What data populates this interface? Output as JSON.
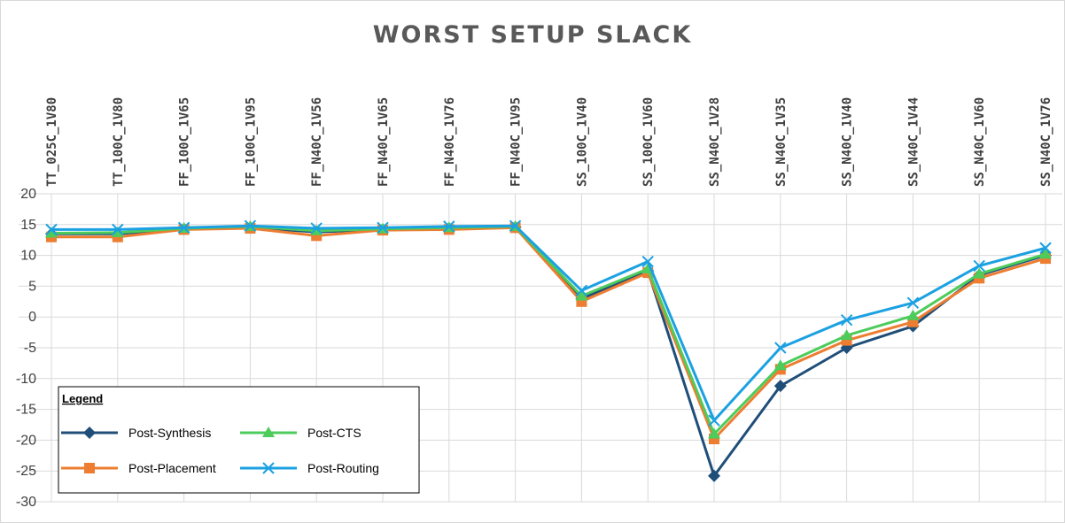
{
  "chart_data": {
    "type": "line",
    "title": "WORST SETUP SLACK",
    "categories": [
      "TT_025C_1V80",
      "TT_100C_1V80",
      "FF_100C_1V65",
      "FF_100C_1V95",
      "FF_N40C_1V56",
      "FF_N40C_1V65",
      "FF_N40C_1V76",
      "FF_N40C_1V95",
      "SS_100C_1V40",
      "SS_100C_1V60",
      "SS_N40C_1V28",
      "SS_N40C_1V35",
      "SS_N40C_1V40",
      "SS_N40C_1V44",
      "SS_N40C_1V60",
      "SS_N40C_1V76"
    ],
    "ylim": [
      -30,
      20
    ],
    "yticks": [
      20,
      15,
      10,
      5,
      0,
      -5,
      -10,
      -15,
      -20,
      -25,
      -30
    ],
    "grid": true,
    "legend_title": "Legend",
    "legend_placement": "bottom-left",
    "series": [
      {
        "name": "Post-Synthesis",
        "color": "#1f4e79",
        "marker": "diamond",
        "values": [
          13.5,
          13.5,
          14.3,
          14.5,
          13.8,
          14.2,
          14.4,
          14.6,
          3.0,
          7.5,
          -25.8,
          -11.2,
          -5.0,
          -1.5,
          6.8,
          10.0
        ]
      },
      {
        "name": "Post-Placement",
        "color": "#ed7d31",
        "marker": "square",
        "values": [
          13.0,
          13.0,
          14.2,
          14.4,
          13.2,
          14.1,
          14.2,
          14.5,
          2.5,
          7.2,
          -19.8,
          -8.5,
          -3.8,
          -0.8,
          6.3,
          9.5
        ]
      },
      {
        "name": "Post-CTS",
        "color": "#4dcc5b",
        "marker": "triangle",
        "values": [
          13.6,
          13.7,
          14.4,
          14.7,
          14.0,
          14.3,
          14.5,
          14.7,
          3.4,
          7.8,
          -19.0,
          -7.9,
          -3.0,
          0.2,
          7.0,
          10.2
        ]
      },
      {
        "name": "Post-Routing",
        "color": "#1ba1e2",
        "marker": "x",
        "values": [
          14.2,
          14.2,
          14.5,
          14.8,
          14.4,
          14.5,
          14.7,
          14.8,
          4.3,
          9.0,
          -16.8,
          -5.0,
          -0.5,
          2.3,
          8.3,
          11.2
        ]
      }
    ]
  }
}
